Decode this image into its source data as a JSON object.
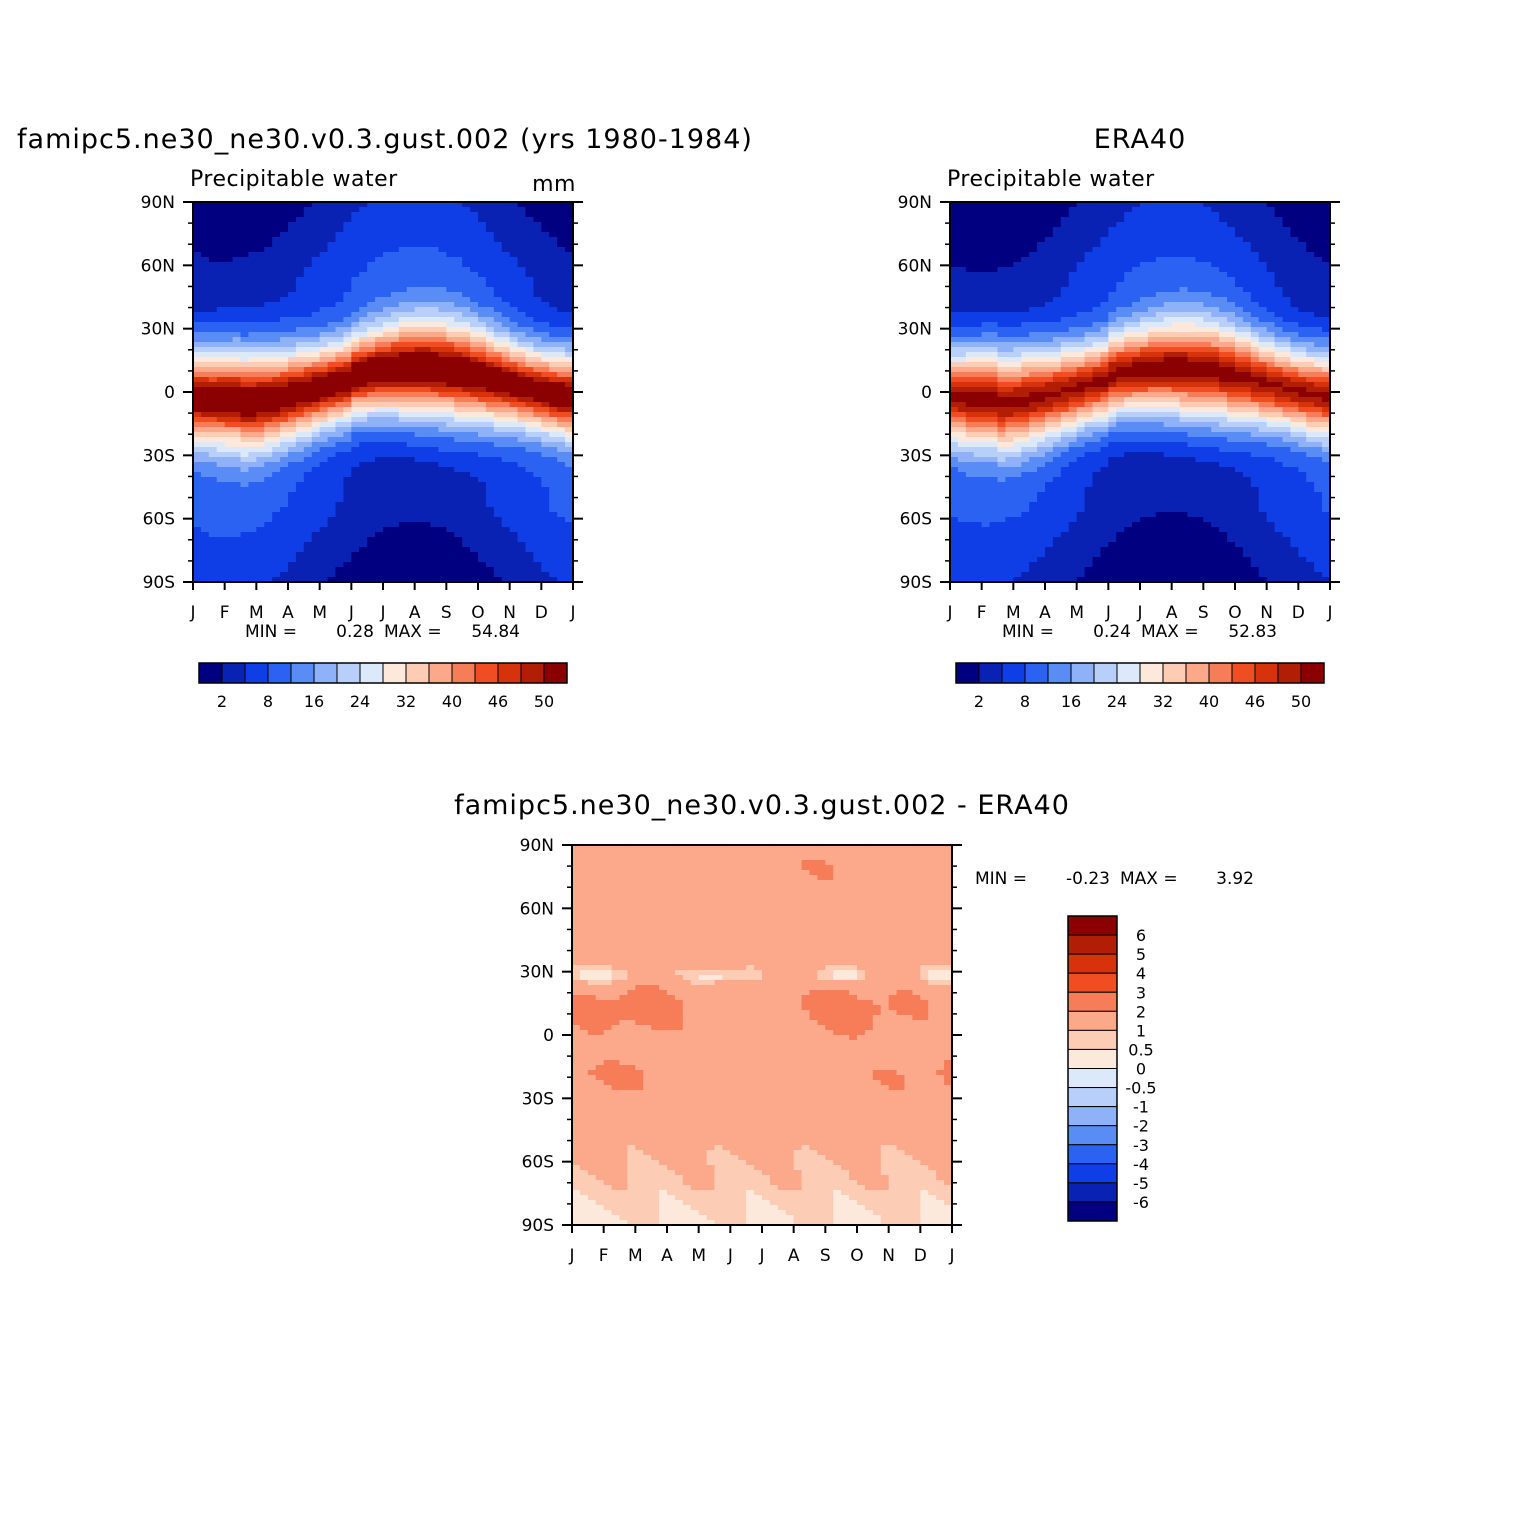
{
  "chart_data": [
    {
      "type": "heatmap",
      "id": "model",
      "title": "famipc5.ne30_ne30.v0.3.gust.002 (yrs 1980-1984)",
      "subtitle": "Precipitable water",
      "units": "mm",
      "x_ticks": [
        "J",
        "F",
        "M",
        "A",
        "M",
        "J",
        "J",
        "A",
        "S",
        "O",
        "N",
        "D",
        "J"
      ],
      "y_ticks": [
        "90N",
        "60N",
        "30N",
        "0",
        "30S",
        "60S",
        "90S"
      ],
      "ylim": [
        -90,
        90
      ],
      "min_label": "MIN =",
      "min_value": "0.28",
      "max_label": "MAX =",
      "max_value": "54.84",
      "colorbar": {
        "orientation": "horizontal",
        "levels": [
          "2",
          "8",
          "16",
          "24",
          "32",
          "40",
          "46",
          "50"
        ],
        "colors": [
          "#000080",
          "#0a22b4",
          "#0f3ee6",
          "#2b62f2",
          "#5a8cf5",
          "#8fb1f7",
          "#b8cff9",
          "#dce9fb",
          "#fde8dc",
          "#fcccb4",
          "#fba98a",
          "#f77d58",
          "#f04e22",
          "#d6330c",
          "#b21e05",
          "#8b0000"
        ]
      },
      "peak_band": {
        "eq_lat_min": -6,
        "eq_lat_max": 14,
        "peak": 54.84
      }
    },
    {
      "type": "heatmap",
      "id": "obs",
      "title": "ERA40",
      "subtitle": "Precipitable water",
      "x_ticks": [
        "J",
        "F",
        "M",
        "A",
        "M",
        "J",
        "J",
        "A",
        "S",
        "O",
        "N",
        "D",
        "J"
      ],
      "y_ticks": [
        "90N",
        "60N",
        "30N",
        "0",
        "30S",
        "60S",
        "90S"
      ],
      "ylim": [
        -90,
        90
      ],
      "min_label": "MIN =",
      "min_value": "0.24",
      "max_label": "MAX =",
      "max_value": "52.83",
      "colorbar": {
        "orientation": "horizontal",
        "levels": [
          "2",
          "8",
          "16",
          "24",
          "32",
          "40",
          "46",
          "50"
        ],
        "colors": [
          "#000080",
          "#0a22b4",
          "#0f3ee6",
          "#2b62f2",
          "#5a8cf5",
          "#8fb1f7",
          "#b8cff9",
          "#dce9fb",
          "#fde8dc",
          "#fcccb4",
          "#fba98a",
          "#f77d58",
          "#f04e22",
          "#d6330c",
          "#b21e05",
          "#8b0000"
        ]
      },
      "peak_band": {
        "eq_lat_min": -6,
        "eq_lat_max": 14,
        "peak": 52.83
      }
    },
    {
      "type": "heatmap",
      "id": "diff",
      "title": "famipc5.ne30_ne30.v0.3.gust.002 - ERA40",
      "x_ticks": [
        "J",
        "F",
        "M",
        "A",
        "M",
        "J",
        "J",
        "A",
        "S",
        "O",
        "N",
        "D",
        "J"
      ],
      "y_ticks": [
        "90N",
        "60N",
        "30N",
        "0",
        "30S",
        "60S",
        "90S"
      ],
      "ylim": [
        -90,
        90
      ],
      "min_label": "MIN =",
      "min_value": "-0.23",
      "max_label": "MAX =",
      "max_value": "3.92",
      "colorbar": {
        "orientation": "vertical",
        "levels": [
          "6",
          "5",
          "4",
          "3",
          "2",
          "1",
          "0.5",
          "0",
          "-0.5",
          "-1",
          "-2",
          "-3",
          "-4",
          "-5",
          "-6"
        ],
        "colors": [
          "#8b0000",
          "#b21e05",
          "#d6330c",
          "#f04e22",
          "#f77d58",
          "#fba98a",
          "#fcccb4",
          "#fde8dc",
          "#dce9fb",
          "#b8cff9",
          "#8fb1f7",
          "#5a8cf5",
          "#2b62f2",
          "#0f3ee6",
          "#0a22b4",
          "#000080"
        ]
      }
    }
  ]
}
